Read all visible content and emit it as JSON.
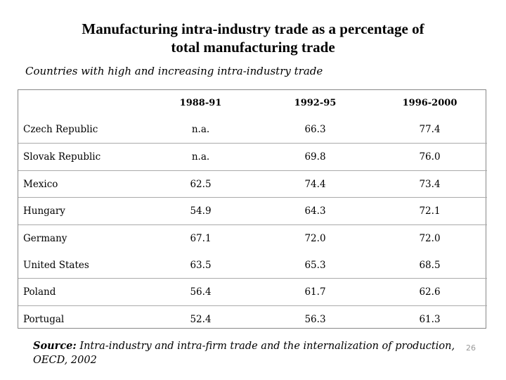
{
  "title_line1": "Manufacturing intra-industry trade as a percentage of",
  "title_line2": "total manufacturing trade",
  "subtitle": "Countries with high and increasing intra-industry trade",
  "columns": [
    "1988-91",
    "1992-95",
    "1996-2000"
  ],
  "rows": [
    {
      "country": "Czech Republic",
      "v1": "n.a.",
      "v2": "66.3",
      "v3": "77.4"
    },
    {
      "country": "Slovak Republic",
      "v1": "n.a.",
      "v2": "69.8",
      "v3": "76.0"
    },
    {
      "country": "Mexico",
      "v1": "62.5",
      "v2": "74.4",
      "v3": "73.4"
    },
    {
      "country": "Hungary",
      "v1": "54.9",
      "v2": "64.3",
      "v3": "72.1"
    },
    {
      "country": "Germany",
      "v1": "67.1",
      "v2": "72.0",
      "v3": "72.0"
    },
    {
      "country": "United States",
      "v1": "63.5",
      "v2": "65.3",
      "v3": "68.5"
    },
    {
      "country": "Poland",
      "v1": "56.4",
      "v2": "61.7",
      "v3": "62.6"
    },
    {
      "country": "Portugal",
      "v1": "52.4",
      "v2": "56.3",
      "v3": "61.3"
    }
  ],
  "source_label": "Source:",
  "source_text": " Intra-industry and intra-firm trade and the internalization of production, OECD, 2002",
  "page_number": "26"
}
